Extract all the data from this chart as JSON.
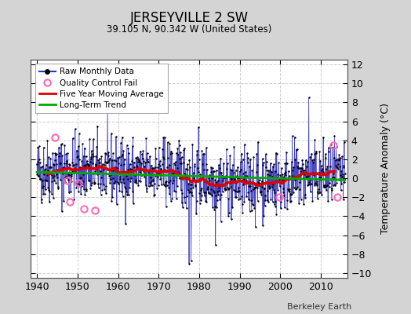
{
  "title": "JERSEYVILLE 2 SW",
  "subtitle": "39.105 N, 90.342 W (United States)",
  "ylabel": "Temperature Anomaly (°C)",
  "xlabel_note": "Berkeley Earth",
  "ylim": [
    -10.5,
    12.5
  ],
  "xlim": [
    1938.5,
    2016.5
  ],
  "yticks": [
    -10,
    -8,
    -6,
    -4,
    -2,
    0,
    2,
    4,
    6,
    8,
    10,
    12
  ],
  "xticks": [
    1940,
    1950,
    1960,
    1970,
    1980,
    1990,
    2000,
    2010
  ],
  "fig_bg_color": "#d4d4d4",
  "plot_bg_color": "#ffffff",
  "grid_color": "#cccccc",
  "raw_line_color": "#3333bb",
  "raw_dot_color": "#000000",
  "ma_color": "#dd0000",
  "trend_color": "#00aa00",
  "qc_color": "#ff69b4",
  "seed": 42,
  "n_months": 912,
  "start_year": 1940.0,
  "end_year": 2015.917
}
